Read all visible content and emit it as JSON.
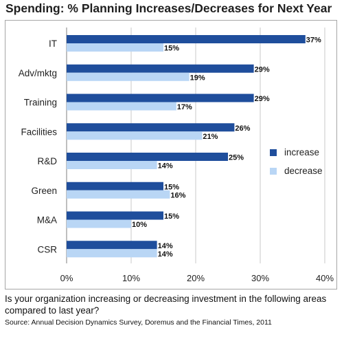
{
  "chart_data": {
    "type": "bar",
    "orientation": "horizontal",
    "title": "Spending:  % Planning Increases/Decreases for Next Year",
    "categories": [
      "IT",
      "Adv/mktg",
      "Training",
      "Facilities",
      "R&D",
      "Green",
      "M&A",
      "CSR"
    ],
    "series": [
      {
        "name": "increase",
        "values": [
          37,
          29,
          29,
          26,
          25,
          15,
          15,
          14
        ],
        "color": "#1f4e9c"
      },
      {
        "name": "decrease",
        "values": [
          15,
          19,
          17,
          21,
          14,
          16,
          10,
          14
        ],
        "color": "#b9d6f5"
      }
    ],
    "value_labels": {
      "increase": [
        "37%",
        "29%",
        "29%",
        "26%",
        "25%",
        "15%",
        "15%",
        "14%"
      ],
      "decrease": [
        "15%",
        "19%",
        "17%",
        "21%",
        "14%",
        "16%",
        "10%",
        "14%"
      ]
    },
    "xlim": [
      0,
      40
    ],
    "xticks": [
      0,
      10,
      20,
      30,
      40
    ],
    "xtick_labels": [
      "0%",
      "10%",
      "20%",
      "30%",
      "40%"
    ],
    "xlabel": "",
    "ylabel": "",
    "grid": true,
    "legend_position": "right"
  },
  "question": "Is your organization increasing or decreasing investment in the following areas compared to last year?",
  "source": "Source: Annual Decision Dynamics Survey, Doremus and the Financial Times, 2011"
}
